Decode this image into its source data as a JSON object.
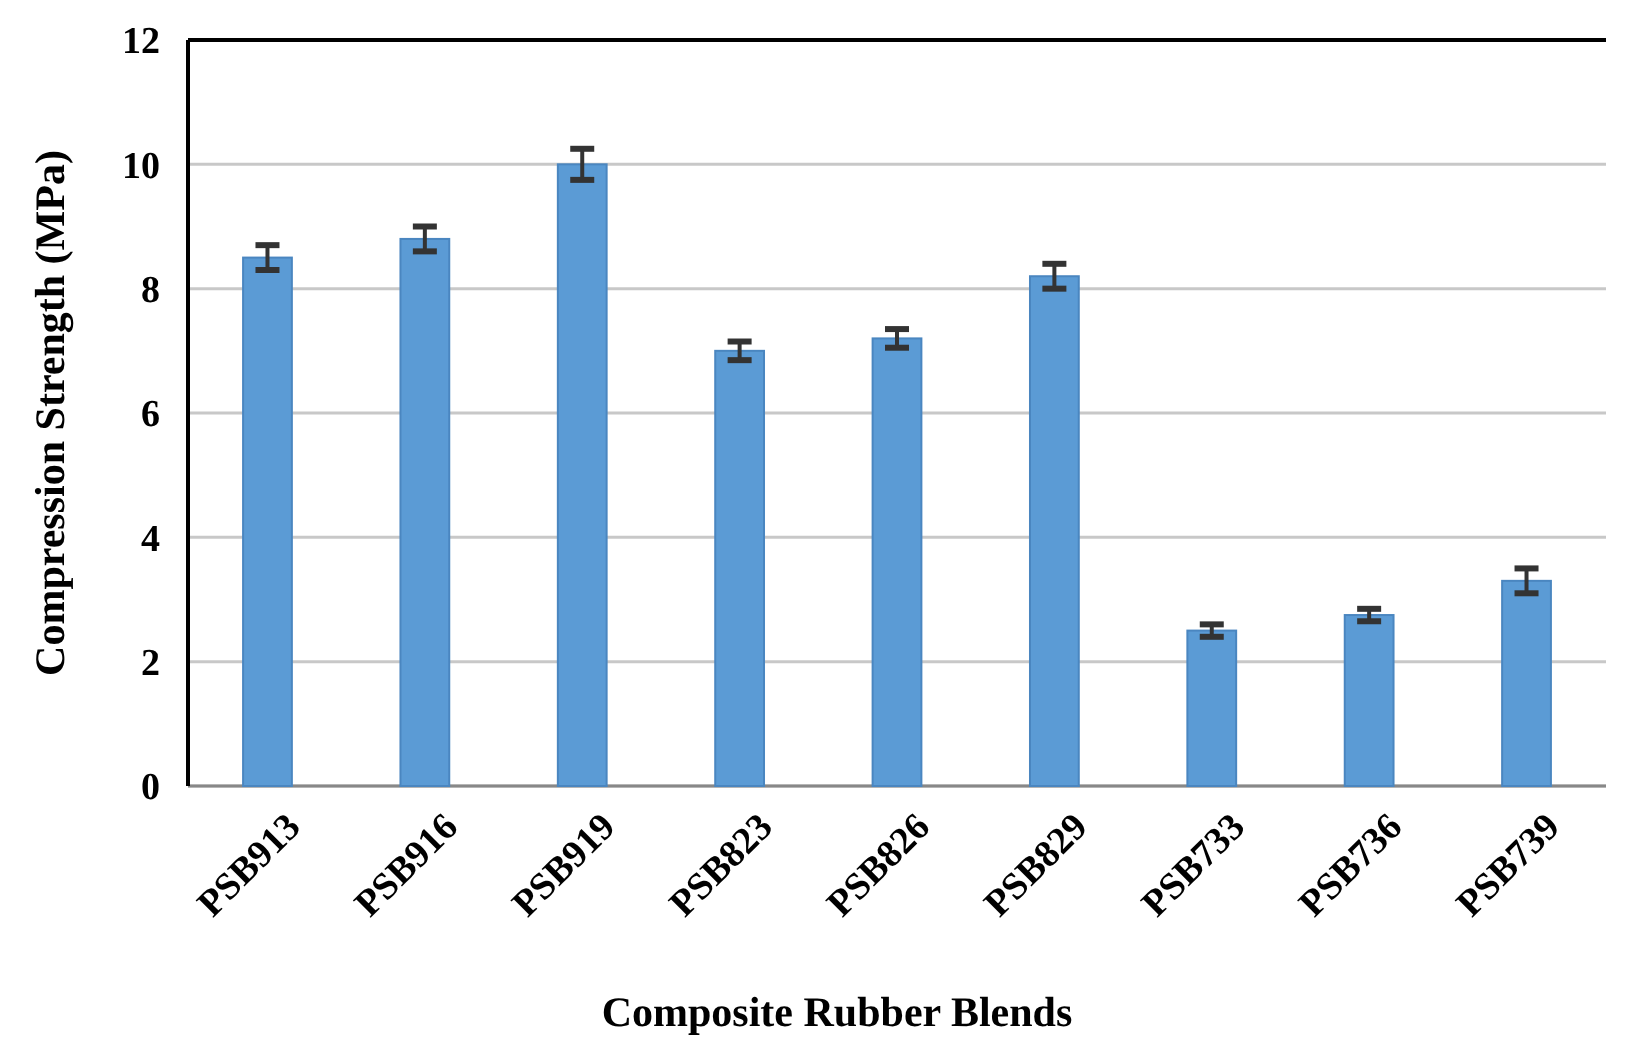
{
  "chart_data": {
    "type": "bar",
    "xlabel": "Composite Rubber Blends",
    "ylabel": "Compression Strength (MPa)",
    "categories": [
      "PSB913",
      "PSB916",
      "PSB919",
      "PSB823",
      "PSB826",
      "PSB829",
      "PSB733",
      "PSB736",
      "PSB739"
    ],
    "values": [
      8.5,
      8.8,
      10.0,
      7.0,
      7.2,
      8.2,
      2.5,
      2.75,
      3.3
    ],
    "errors": [
      0.2,
      0.2,
      0.25,
      0.15,
      0.15,
      0.2,
      0.1,
      0.1,
      0.2
    ],
    "color": "#5b9bd5",
    "ylim": [
      0,
      12
    ],
    "yticks": [
      0,
      2,
      4,
      6,
      8,
      10,
      12
    ],
    "grid": "y"
  }
}
